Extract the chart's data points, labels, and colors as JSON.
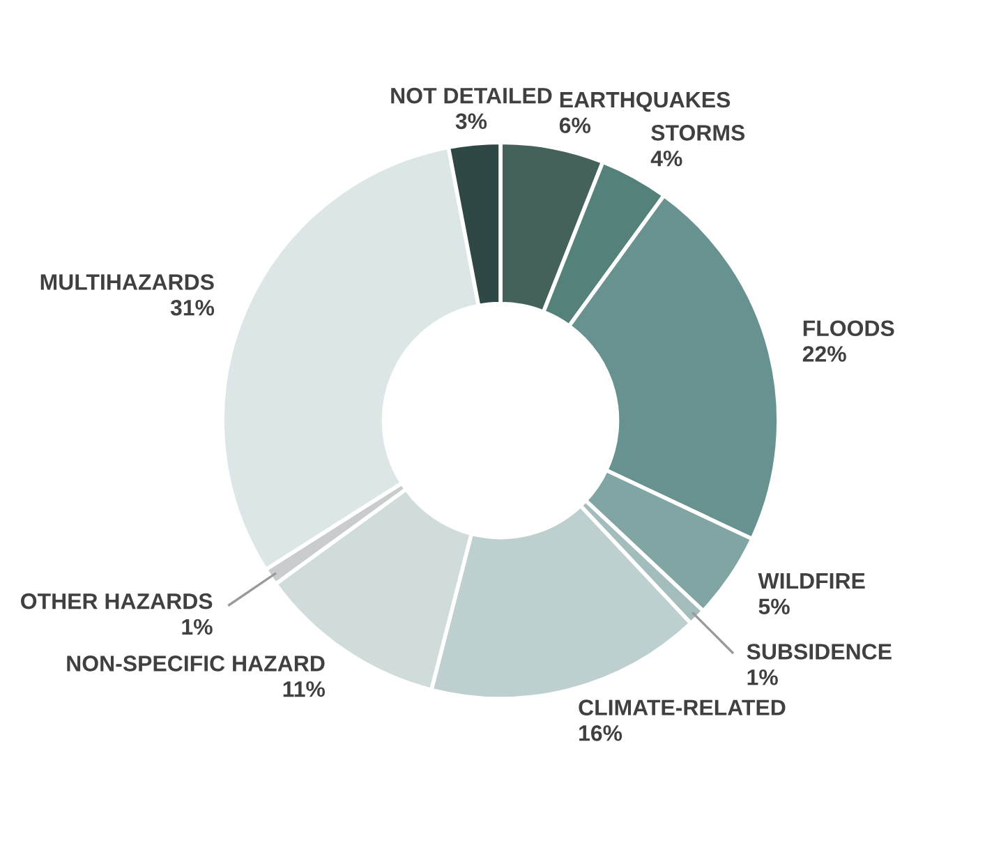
{
  "chart_data": {
    "type": "donut",
    "categories": [
      "EARTHQUAKES",
      "STORMS",
      "FLOODS",
      "WILDFIRE",
      "SUBSIDENCE",
      "CLIMATE-RELATED",
      "NON-SPECIFIC HAZARD",
      "OTHER HAZARDS",
      "MULTIHAZARDS",
      "NOT DETAILED"
    ],
    "values": [
      6,
      4,
      22,
      5,
      1,
      16,
      11,
      1,
      31,
      3
    ],
    "value_labels": [
      "6%",
      "4%",
      "22%",
      "5%",
      "1%",
      "16%",
      "11%",
      "1%",
      "31%",
      "3%"
    ],
    "colors": [
      "#45615c",
      "#55817b",
      "#67928f",
      "#80a5a2",
      "#a3bcbc",
      "#bdcfcf",
      "#cfdcdb",
      "#c8cccc",
      "#dde6e6",
      "#2f4845"
    ],
    "legend": false
  }
}
